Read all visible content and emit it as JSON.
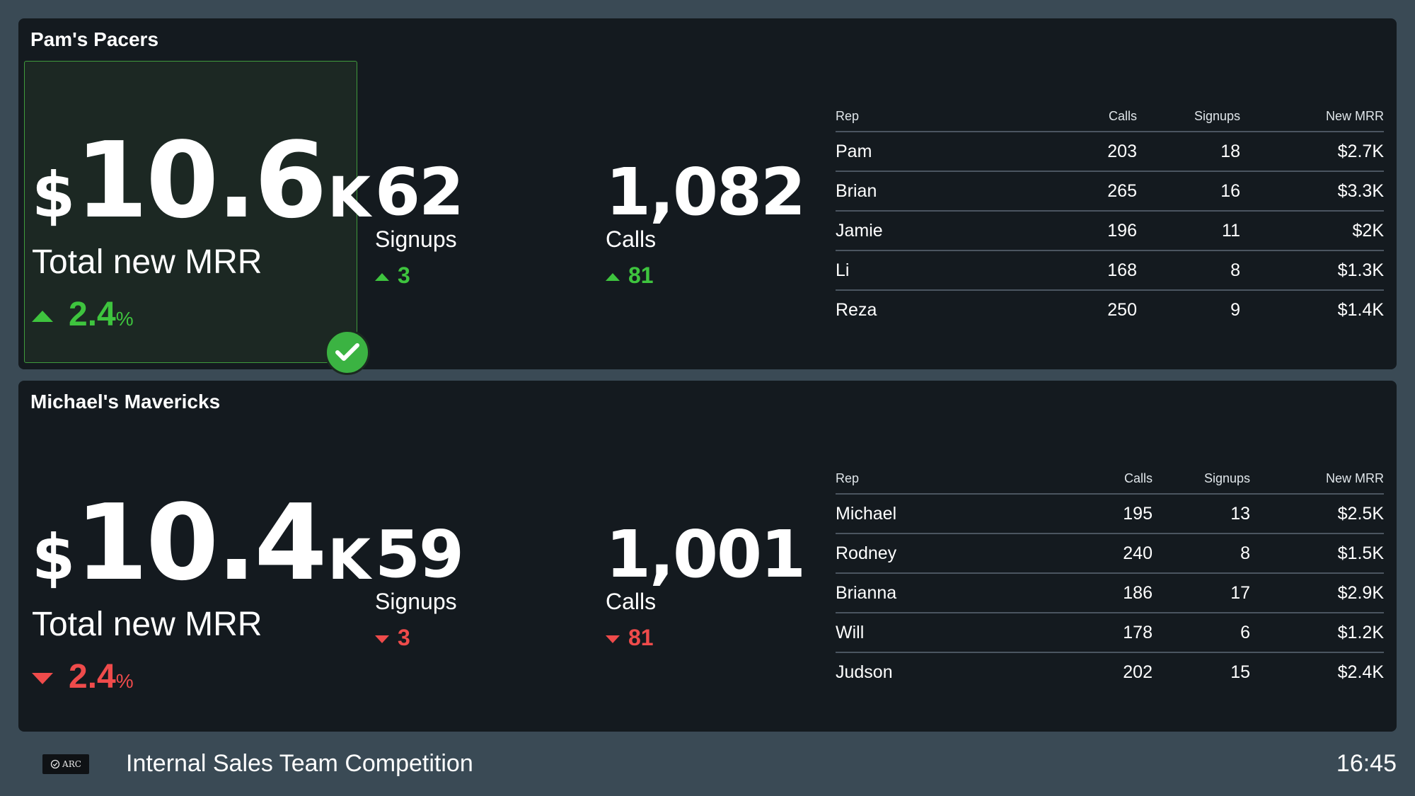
{
  "teams": [
    {
      "name": "Pam's Pacers",
      "winner": true,
      "mrr": {
        "currency": "$",
        "value": "10.6",
        "suffix": "K",
        "label": "Total new MRR",
        "change": "2.4",
        "change_unit": "%",
        "direction": "up"
      },
      "signups": {
        "value": "62",
        "label": "Signups",
        "change": "3",
        "direction": "up"
      },
      "calls": {
        "value": "1,082",
        "label": "Calls",
        "change": "81",
        "direction": "up"
      },
      "table": {
        "headers": [
          "Rep",
          "Calls",
          "Signups",
          "New MRR"
        ],
        "rows": [
          [
            "Pam",
            "203",
            "18",
            "$2.7K"
          ],
          [
            "Brian",
            "265",
            "16",
            "$3.3K"
          ],
          [
            "Jamie",
            "196",
            "11",
            "$2K"
          ],
          [
            "Li",
            "168",
            "8",
            "$1.3K"
          ],
          [
            "Reza",
            "250",
            "9",
            "$1.4K"
          ]
        ]
      }
    },
    {
      "name": "Michael's Mavericks",
      "winner": false,
      "mrr": {
        "currency": "$",
        "value": "10.4",
        "suffix": "K",
        "label": "Total new MRR",
        "change": "2.4",
        "change_unit": "%",
        "direction": "down"
      },
      "signups": {
        "value": "59",
        "label": "Signups",
        "change": "3",
        "direction": "down"
      },
      "calls": {
        "value": "1,001",
        "label": "Calls",
        "change": "81",
        "direction": "down"
      },
      "table": {
        "headers": [
          "Rep",
          "Calls",
          "Signups",
          "New MRR"
        ],
        "rows": [
          [
            "Michael",
            "195",
            "13",
            "$2.5K"
          ],
          [
            "Rodney",
            "240",
            "8",
            "$1.5K"
          ],
          [
            "Brianna",
            "186",
            "17",
            "$2.9K"
          ],
          [
            "Will",
            "178",
            "6",
            "$1.2K"
          ],
          [
            "Judson",
            "202",
            "15",
            "$2.4K"
          ]
        ]
      }
    }
  ],
  "footer": {
    "logo_text": "ARC",
    "title": "Internal Sales Team Competition",
    "time": "16:45"
  },
  "icons": {
    "winner": "check-circle-icon",
    "up": "triangle-up-icon",
    "down": "triangle-down-icon"
  },
  "colors": {
    "background": "#3a4a55",
    "panel": "#141a1f",
    "winner_bg": "#1c2823",
    "winner_border": "#3f9a3c",
    "up": "#3ec43e",
    "down": "#ef4b4b",
    "check": "#3bb342"
  }
}
